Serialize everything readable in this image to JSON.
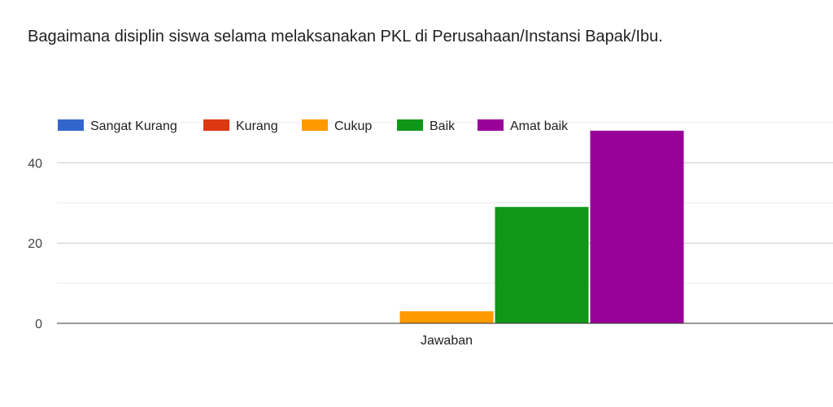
{
  "chart_data": {
    "type": "bar",
    "title": "Bagaimana disiplin siswa selama melaksanakan PKL di Perusahaan/Instansi Bapak/Ibu.",
    "xlabel": "",
    "ylabel": "",
    "categories": [
      "Jawaban"
    ],
    "series": [
      {
        "name": "Sangat Kurang",
        "values": [
          0
        ],
        "color": "#3366cc"
      },
      {
        "name": "Kurang",
        "values": [
          0
        ],
        "color": "#dc3912"
      },
      {
        "name": "Cukup",
        "values": [
          3
        ],
        "color": "#ff9900"
      },
      {
        "name": "Baik",
        "values": [
          29
        ],
        "color": "#109618"
      },
      {
        "name": "Amat baik",
        "values": [
          48
        ],
        "color": "#990099"
      }
    ],
    "ylim": [
      0,
      50
    ],
    "yticks": [
      0,
      20,
      40
    ],
    "grid": true,
    "legend": "top-left"
  }
}
